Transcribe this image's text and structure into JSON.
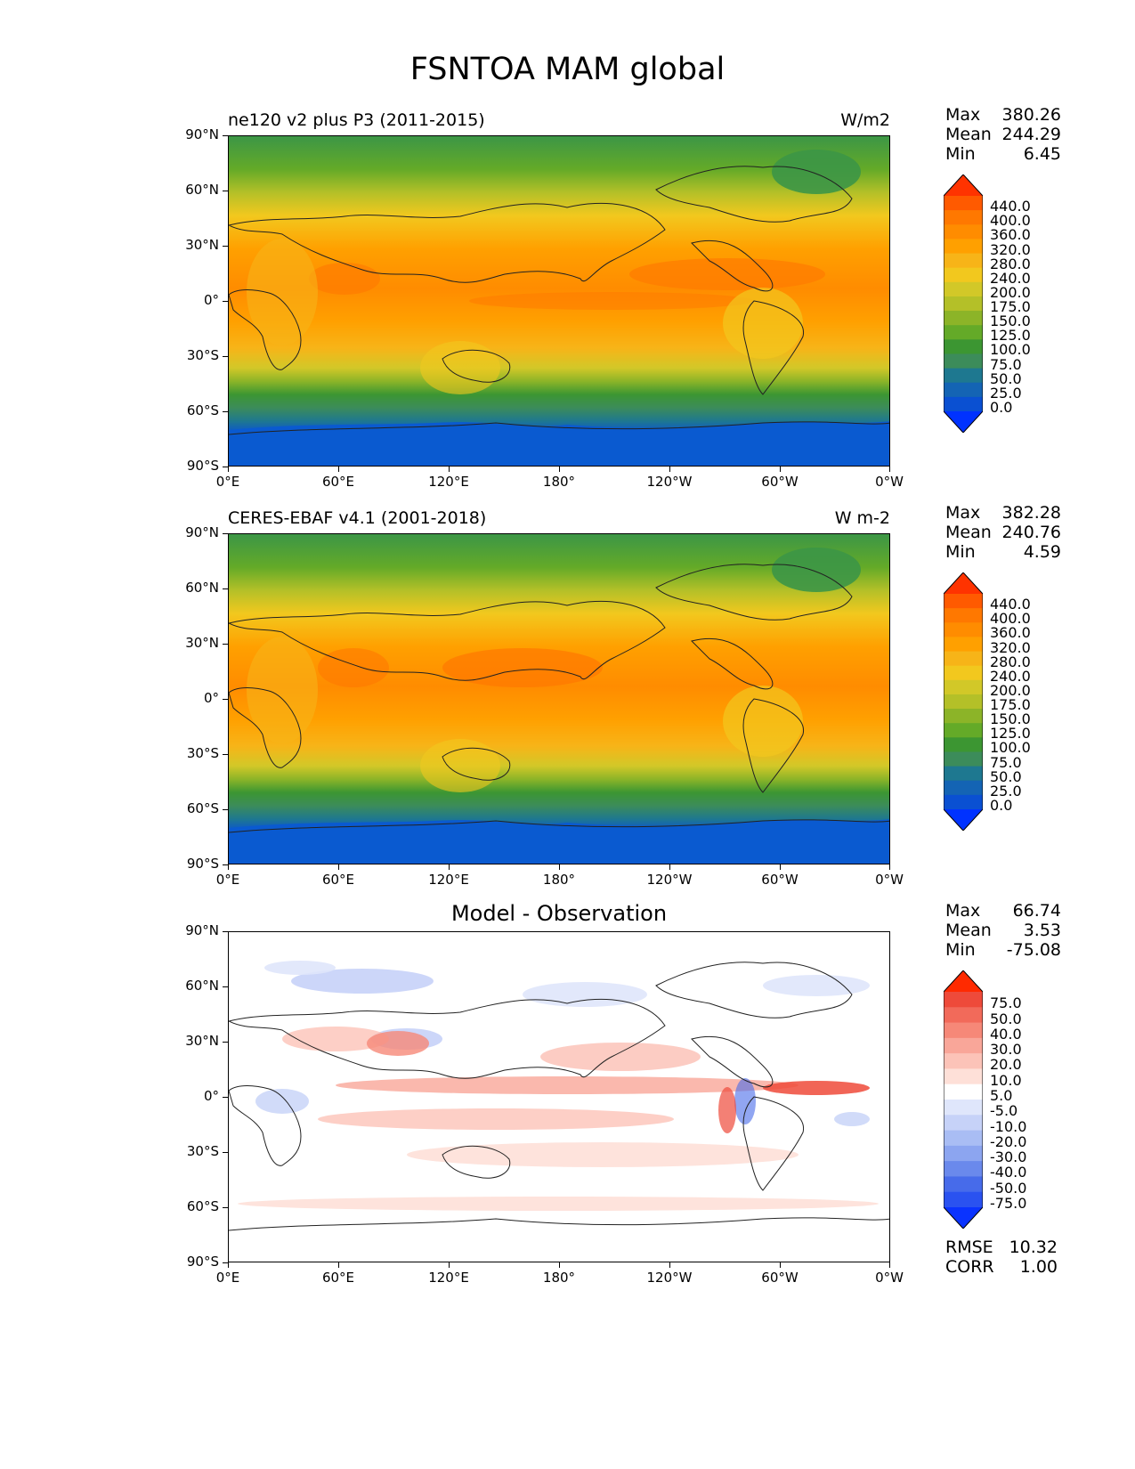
{
  "figure_title": "FSNTOA MAM global",
  "lat_labels": [
    "90°N",
    "60°N",
    "30°N",
    "0°",
    "30°S",
    "60°S",
    "90°S"
  ],
  "lon_labels": [
    "0°E",
    "60°E",
    "120°E",
    "180°",
    "120°W",
    "60°W",
    "0°W"
  ],
  "abs_levels": [
    "440.0",
    "400.0",
    "360.0",
    "320.0",
    "280.0",
    "240.0",
    "200.0",
    "175.0",
    "150.0",
    "125.0",
    "100.0",
    "75.0",
    "50.0",
    "25.0",
    "0.0"
  ],
  "abs_colors": [
    "#ff3300",
    "#ff5a00",
    "#ff7800",
    "#ff8c00",
    "#ffa000",
    "#f7b418",
    "#f2c81e",
    "#d2c828",
    "#b4c028",
    "#8cb428",
    "#64aa28",
    "#3c9632",
    "#3c8c5a",
    "#1e7890",
    "#1464b4",
    "#0a50d2",
    "#0032ff"
  ],
  "diff_levels": [
    "75.0",
    "50.0",
    "40.0",
    "30.0",
    "20.0",
    "10.0",
    "5.0",
    "-5.0",
    "-10.0",
    "-20.0",
    "-30.0",
    "-40.0",
    "-50.0",
    "-75.0"
  ],
  "diff_colors": [
    "#ff2a00",
    "#ee4a3a",
    "#f26a5a",
    "#f68878",
    "#f9a699",
    "#fcc3b8",
    "#fee0d8",
    "#ffffff",
    "#dfe6fb",
    "#c6d2f8",
    "#a9bdf4",
    "#8ca5f0",
    "#6a89ec",
    "#476bea",
    "#2a52f0",
    "#0a33ff"
  ],
  "panels": [
    {
      "title": "ne120 v2 plus P3 (2011-2015)",
      "units": "W/m2",
      "stats": [
        {
          "label": "Max",
          "value": "380.26"
        },
        {
          "label": "Mean",
          "value": "244.29"
        },
        {
          "label": "Min",
          "value": "6.45"
        }
      ]
    },
    {
      "title": "CERES-EBAF v4.1 (2001-2018)",
      "units": "W m-2",
      "stats": [
        {
          "label": "Max",
          "value": "382.28"
        },
        {
          "label": "Mean",
          "value": "240.76"
        },
        {
          "label": "Min",
          "value": "4.59"
        }
      ]
    },
    {
      "title": "Model - Observation",
      "units": "",
      "stats": [
        {
          "label": "Max",
          "value": "66.74"
        },
        {
          "label": "Mean",
          "value": "3.53"
        },
        {
          "label": "Min",
          "value": "-75.08"
        }
      ],
      "footer": [
        {
          "label": "RMSE",
          "value": "10.32"
        },
        {
          "label": "CORR",
          "value": "1.00"
        }
      ]
    }
  ]
}
